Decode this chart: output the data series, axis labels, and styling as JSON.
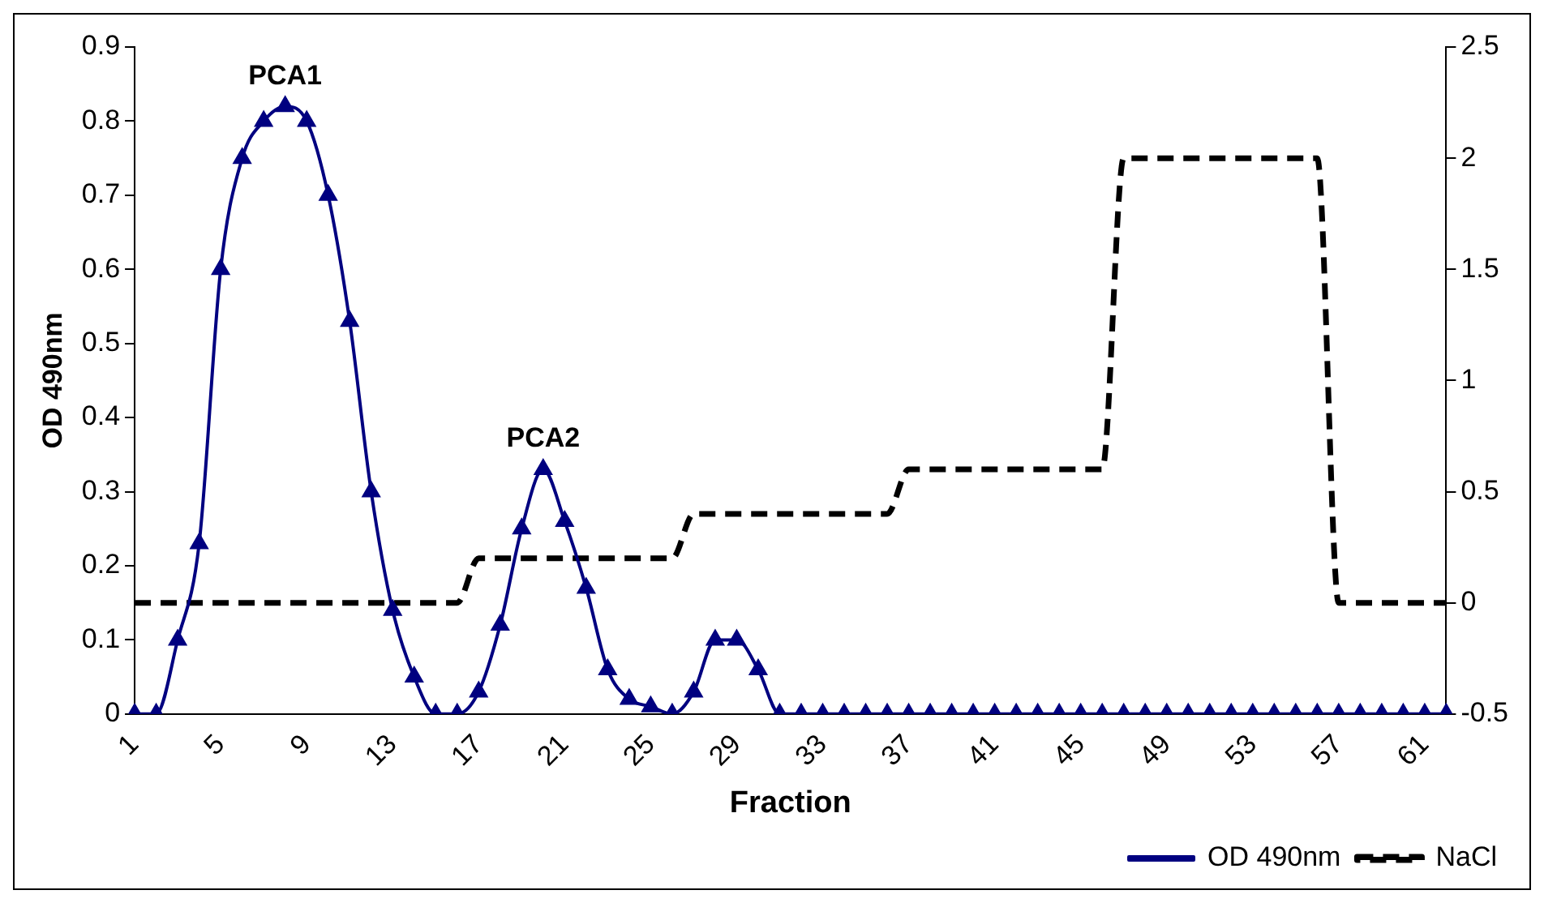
{
  "chart_data": {
    "type": "line",
    "xlabel": "Fraction",
    "ylabel": "OD 490nm",
    "categories": [
      "1",
      null,
      null,
      null,
      "5",
      null,
      null,
      null,
      "9",
      null,
      null,
      null,
      "13",
      null,
      null,
      null,
      "17",
      null,
      null,
      null,
      "21",
      null,
      null,
      null,
      "25",
      null,
      null,
      null,
      "29",
      null,
      null,
      null,
      "33",
      null,
      null,
      null,
      "37",
      null,
      null,
      null,
      "41",
      null,
      null,
      null,
      "45",
      null,
      null,
      null,
      "49",
      null,
      null,
      null,
      "53",
      null,
      null,
      null,
      "57",
      null,
      null,
      null,
      "61",
      null
    ],
    "series": [
      {
        "name": "OD 490nm",
        "color": "#000080",
        "marker": "triangle",
        "line_style": "solid",
        "values": [
          0,
          0,
          0.1,
          0.23,
          0.6,
          0.75,
          0.8,
          0.82,
          0.8,
          0.7,
          0.53,
          0.3,
          0.14,
          0.05,
          0,
          0,
          0.03,
          0.12,
          0.25,
          0.33,
          0.26,
          0.17,
          0.06,
          0.02,
          0.01,
          0,
          0.03,
          0.1,
          0.1,
          0.06,
          0,
          0,
          0,
          0,
          0,
          0,
          0,
          0,
          0,
          0,
          0,
          0,
          0,
          0,
          0,
          0,
          0,
          0,
          0,
          0,
          0,
          0,
          0,
          0,
          0,
          0,
          0,
          0,
          0,
          0,
          0,
          0
        ]
      },
      {
        "name": "NaCl",
        "color": "#000000",
        "marker": "none",
        "line_style": "dashed",
        "axis": "y2",
        "values": [
          0,
          0,
          0,
          0,
          0,
          0,
          0,
          0,
          0,
          0,
          0,
          0,
          0,
          0,
          0,
          0,
          0.2,
          0.2,
          0.2,
          0.2,
          0.2,
          0.2,
          0.2,
          0.2,
          0.2,
          0.2,
          0.4,
          0.4,
          0.4,
          0.4,
          0.4,
          0.4,
          0.4,
          0.4,
          0.4,
          0.4,
          0.6,
          0.6,
          0.6,
          0.6,
          0.6,
          0.6,
          0.6,
          0.6,
          0.6,
          0.6,
          2,
          2,
          2,
          2,
          2,
          2,
          2,
          2,
          2,
          2,
          0,
          0,
          0,
          0,
          0,
          0
        ]
      }
    ],
    "ylim": [
      0,
      0.9
    ],
    "yticks": [
      0,
      0.1,
      0.2,
      0.3,
      0.4,
      0.5,
      0.6,
      0.7,
      0.8,
      0.9
    ],
    "y2lim": [
      -0.5,
      2.5
    ],
    "y2ticks": [
      -0.5,
      0,
      0.5,
      1,
      1.5,
      2,
      2.5
    ],
    "grid": false,
    "legend": "bottom right",
    "annotations": [
      "PCA1",
      "PCA2"
    ]
  }
}
